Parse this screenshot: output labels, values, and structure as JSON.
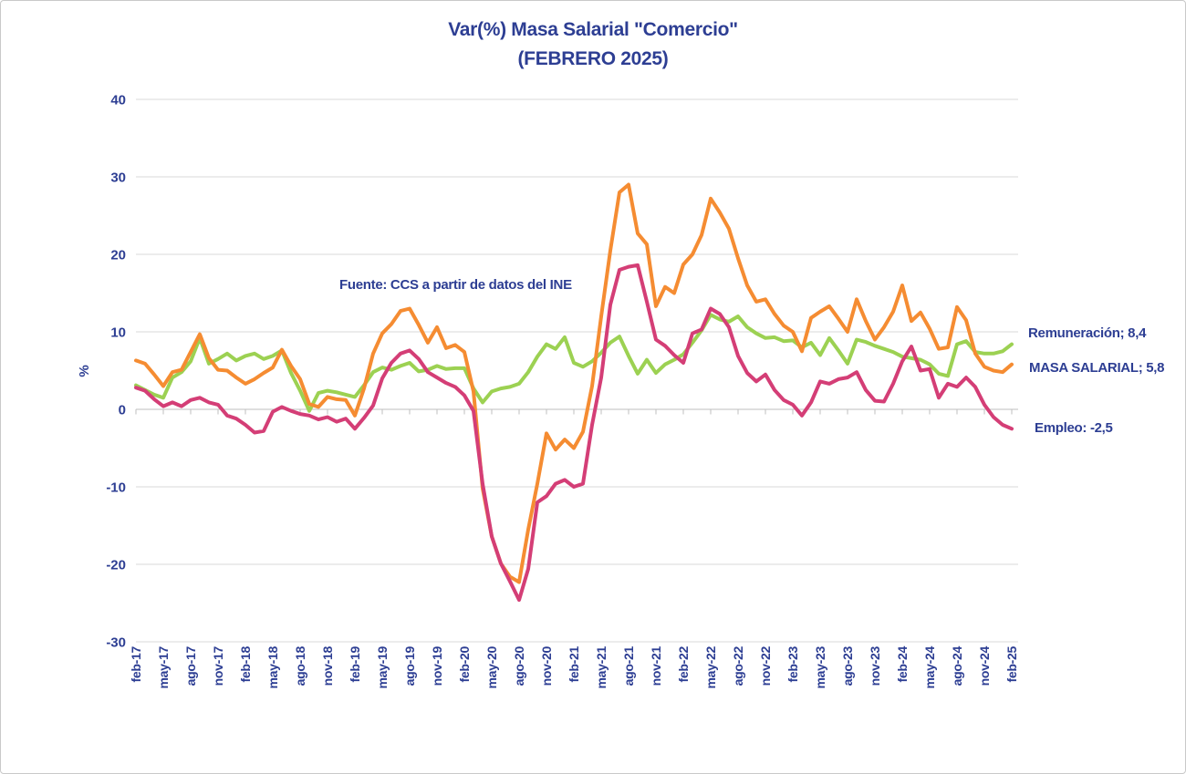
{
  "title": {
    "line1": "Var(%) Masa Salarial \"Comercio\"",
    "line2": "(FEBRERO 2025)"
  },
  "source_note": "Fuente: CCS a partir de datos del INE",
  "colors": {
    "text_navy": "#2d3e93",
    "gridline": "#d9d9d9",
    "axis": "#bfbfbf",
    "remuneracion": "#9cd152",
    "masa_salarial": "#f58c32",
    "empleo": "#d43e76"
  },
  "chart_data": {
    "type": "line",
    "title": "Var(%) Masa Salarial \"Comercio\" (FEBRERO 2025)",
    "ylabel": "%",
    "ylim": [
      -30,
      40
    ],
    "ytick_step": 10,
    "grid": "horizontal",
    "x_tick_labels": [
      "feb-17",
      "may-17",
      "ago-17",
      "nov-17",
      "feb-18",
      "may-18",
      "ago-18",
      "nov-18",
      "feb-19",
      "may-19",
      "ago-19",
      "nov-19",
      "feb-20",
      "may-20",
      "ago-20",
      "nov-20",
      "feb-21",
      "may-21",
      "ago-21",
      "nov-21",
      "feb-22",
      "may-22",
      "ago-22",
      "nov-22",
      "feb-23",
      "may-23",
      "ago-23",
      "nov-23",
      "feb-24",
      "may-24",
      "ago-24",
      "nov-24",
      "feb-25"
    ],
    "x": [
      "feb-17",
      "mar-17",
      "abr-17",
      "may-17",
      "jun-17",
      "jul-17",
      "ago-17",
      "sep-17",
      "oct-17",
      "nov-17",
      "dic-17",
      "ene-18",
      "feb-18",
      "mar-18",
      "abr-18",
      "may-18",
      "jun-18",
      "jul-18",
      "ago-18",
      "sep-18",
      "oct-18",
      "nov-18",
      "dic-18",
      "ene-19",
      "feb-19",
      "mar-19",
      "abr-19",
      "may-19",
      "jun-19",
      "jul-19",
      "ago-19",
      "sep-19",
      "oct-19",
      "nov-19",
      "dic-19",
      "ene-20",
      "feb-20",
      "mar-20",
      "abr-20",
      "may-20",
      "jun-20",
      "jul-20",
      "ago-20",
      "sep-20",
      "oct-20",
      "nov-20",
      "dic-20",
      "ene-21",
      "feb-21",
      "mar-21",
      "abr-21",
      "may-21",
      "jun-21",
      "jul-21",
      "ago-21",
      "sep-21",
      "oct-21",
      "nov-21",
      "dic-21",
      "ene-22",
      "feb-22",
      "mar-22",
      "abr-22",
      "may-22",
      "jun-22",
      "jul-22",
      "ago-22",
      "sep-22",
      "oct-22",
      "nov-22",
      "dic-22",
      "ene-23",
      "feb-23",
      "mar-23",
      "abr-23",
      "may-23",
      "jun-23",
      "jul-23",
      "ago-23",
      "sep-23",
      "oct-23",
      "nov-23",
      "dic-23",
      "ene-24",
      "feb-24",
      "mar-24",
      "abr-24",
      "may-24",
      "jun-24",
      "jul-24",
      "ago-24",
      "sep-24",
      "oct-24",
      "nov-24",
      "dic-24",
      "ene-25",
      "feb-25"
    ],
    "series": [
      {
        "name": "Remuneración",
        "color": "#9cd152",
        "end_label": "Remuneración; 8,4",
        "end_value": 8.4,
        "values": [
          3.1,
          2.5,
          1.9,
          1.5,
          4.1,
          4.8,
          6.2,
          9.2,
          5.9,
          6.5,
          7.2,
          6.3,
          6.9,
          7.2,
          6.5,
          6.9,
          7.6,
          4.7,
          2.4,
          -0.2,
          2.1,
          2.4,
          2.2,
          1.9,
          1.6,
          3.1,
          4.8,
          5.4,
          5.1,
          5.6,
          6.0,
          4.9,
          5.1,
          5.6,
          5.2,
          5.3,
          5.3,
          2.7,
          0.9,
          2.3,
          2.7,
          2.9,
          3.3,
          4.8,
          6.8,
          8.4,
          7.8,
          9.3,
          6.0,
          5.5,
          6.2,
          7.3,
          8.6,
          9.4,
          6.9,
          4.6,
          6.4,
          4.7,
          5.8,
          6.4,
          7.1,
          8.6,
          10.2,
          12.2,
          11.6,
          11.3,
          12.0,
          10.6,
          9.8,
          9.2,
          9.3,
          8.8,
          8.9,
          8.0,
          8.6,
          7.0,
          9.2,
          7.6,
          5.9,
          9.0,
          8.7,
          8.2,
          7.8,
          7.4,
          6.8,
          6.6,
          6.4,
          5.8,
          4.6,
          4.3,
          8.4,
          8.8,
          7.4,
          7.2,
          7.2,
          7.5,
          8.4
        ]
      },
      {
        "name": "MASA SALARIAL",
        "color": "#f58c32",
        "end_label": "MASA SALARIAL; 5,8",
        "end_value": 5.8,
        "values": [
          6.3,
          5.9,
          4.5,
          3.0,
          4.8,
          5.1,
          7.4,
          9.7,
          6.6,
          5.1,
          5.0,
          4.1,
          3.3,
          3.9,
          4.7,
          5.4,
          7.7,
          5.6,
          3.9,
          0.7,
          0.3,
          1.6,
          1.3,
          1.2,
          -0.8,
          2.7,
          7.2,
          9.8,
          11.0,
          12.7,
          13.0,
          10.9,
          8.6,
          10.6,
          7.9,
          8.3,
          7.4,
          2.3,
          -10.2,
          -16.4,
          -19.9,
          -21.6,
          -22.3,
          -15.5,
          -9.6,
          -3.1,
          -5.2,
          -3.9,
          -5.0,
          -2.9,
          3.0,
          12.0,
          20.5,
          28.0,
          29.0,
          22.7,
          21.3,
          13.3,
          15.8,
          15.0,
          18.7,
          20.0,
          22.5,
          27.2,
          25.4,
          23.3,
          19.5,
          16.0,
          13.9,
          14.2,
          12.3,
          10.8,
          10.0,
          7.5,
          11.8,
          12.6,
          13.3,
          11.7,
          10.0,
          14.2,
          11.4,
          9.0,
          10.6,
          12.6,
          16.0,
          11.4,
          12.5,
          10.4,
          7.8,
          8.0,
          13.2,
          11.5,
          7.2,
          5.5,
          5.0,
          4.8,
          5.8
        ]
      },
      {
        "name": "Empleo",
        "color": "#d43e76",
        "end_label": "Empleo: -2,5",
        "end_value": -2.5,
        "values": [
          2.8,
          2.4,
          1.3,
          0.4,
          0.9,
          0.4,
          1.2,
          1.5,
          0.9,
          0.6,
          -0.8,
          -1.2,
          -2.0,
          -3.0,
          -2.8,
          -0.3,
          0.3,
          -0.2,
          -0.6,
          -0.8,
          -1.3,
          -1.0,
          -1.6,
          -1.2,
          -2.5,
          -1.1,
          0.5,
          4.0,
          6.0,
          7.2,
          7.6,
          6.5,
          4.8,
          4.1,
          3.4,
          2.9,
          1.8,
          -0.2,
          -9.6,
          -16.4,
          -19.9,
          -22.2,
          -24.6,
          -20.6,
          -12.0,
          -11.2,
          -9.6,
          -9.1,
          -10.0,
          -9.6,
          -2.0,
          4.1,
          13.5,
          18.0,
          18.4,
          18.6,
          13.9,
          9.0,
          8.2,
          7.0,
          6.0,
          9.8,
          10.3,
          13.0,
          12.3,
          10.6,
          6.9,
          4.7,
          3.6,
          4.5,
          2.5,
          1.2,
          0.6,
          -0.8,
          0.9,
          3.6,
          3.3,
          3.9,
          4.1,
          4.8,
          2.5,
          1.1,
          1.0,
          3.3,
          6.2,
          8.1,
          5.0,
          5.2,
          1.5,
          3.3,
          2.9,
          4.1,
          2.9,
          0.6,
          -1.0,
          -2.0,
          -2.5
        ]
      }
    ]
  }
}
